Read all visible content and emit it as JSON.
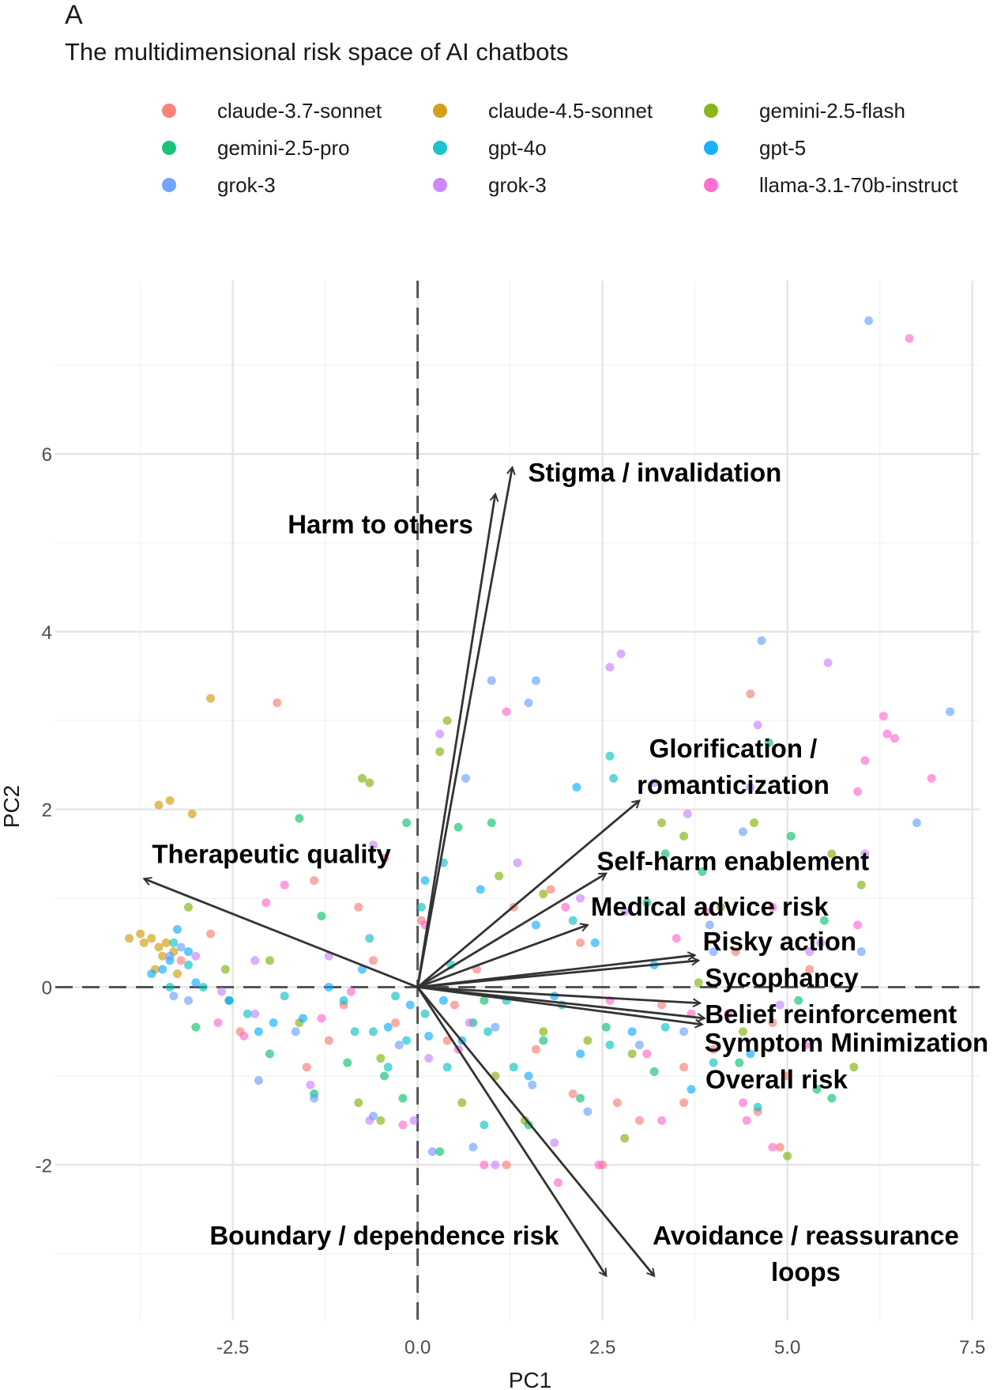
{
  "panel_letter": "A",
  "chart_data": {
    "type": "scatter",
    "title": "The multidimensional risk space of AI chatbots",
    "xlabel": "PC1",
    "ylabel": "PC2",
    "xlim": [
      -4.9,
      7.6
    ],
    "ylim": [
      -3.75,
      7.95
    ],
    "xticks": [
      -2.5,
      0.0,
      2.5,
      5.0,
      7.5
    ],
    "xtick_labels": [
      "-2.5",
      "0.0",
      "2.5",
      "5.0",
      "7.5"
    ],
    "yticks": [
      -2,
      0,
      2,
      4,
      6
    ],
    "ytick_labels": [
      "-2",
      "0",
      "2",
      "4",
      "6"
    ],
    "grid": true,
    "reference_lines": {
      "x": 0,
      "y": 0,
      "style": "dashed"
    },
    "legend_position": "top",
    "series": [
      {
        "name": "claude-3.7-sonnet",
        "color": "#F8766D",
        "points": [
          [
            -1.9,
            3.2
          ],
          [
            -1.4,
            1.2
          ],
          [
            -1.5,
            -0.9
          ],
          [
            -2.4,
            -0.5
          ],
          [
            -1.0,
            -0.2
          ],
          [
            -0.8,
            0.9
          ],
          [
            0.05,
            0.75
          ],
          [
            0.4,
            -0.6
          ],
          [
            1.3,
            0.9
          ],
          [
            1.8,
            1.1
          ],
          [
            2.2,
            0.5
          ],
          [
            2.7,
            -1.3
          ],
          [
            3.0,
            -1.5
          ],
          [
            3.3,
            -0.2
          ],
          [
            3.6,
            -0.9
          ],
          [
            4.0,
            -0.7
          ],
          [
            4.3,
            0.4
          ],
          [
            4.5,
            3.3
          ],
          [
            4.8,
            -0.4
          ],
          [
            5.0,
            -1.0
          ],
          [
            4.9,
            -1.8
          ],
          [
            5.3,
            0.2
          ],
          [
            2.1,
            -1.2
          ],
          [
            1.6,
            -0.7
          ],
          [
            0.8,
            0.2
          ],
          [
            -0.3,
            -0.4
          ],
          [
            -1.2,
            -0.6
          ],
          [
            -2.8,
            0.6
          ],
          [
            -3.2,
            0.3
          ],
          [
            1.2,
            -2.0
          ],
          [
            2.5,
            -2.0
          ],
          [
            3.6,
            -1.3
          ],
          [
            4.6,
            -1.4
          ],
          [
            0.5,
            -0.2
          ],
          [
            -0.6,
            0.3
          ]
        ]
      },
      {
        "name": "claude-4.5-sonnet",
        "color": "#CD9600",
        "points": [
          [
            -2.8,
            3.25
          ],
          [
            -3.5,
            2.05
          ],
          [
            -3.35,
            2.1
          ],
          [
            -3.05,
            1.95
          ],
          [
            -3.9,
            0.55
          ],
          [
            -3.75,
            0.6
          ],
          [
            -3.6,
            0.55
          ],
          [
            -3.5,
            0.45
          ],
          [
            -3.45,
            0.35
          ],
          [
            -3.55,
            0.2
          ],
          [
            -3.7,
            0.5
          ],
          [
            -3.4,
            0.5
          ],
          [
            -3.3,
            0.4
          ],
          [
            -3.25,
            0.15
          ]
        ]
      },
      {
        "name": "gemini-2.5-flash",
        "color": "#7CAE00",
        "points": [
          [
            -0.75,
            2.35
          ],
          [
            -0.65,
            2.3
          ],
          [
            0.3,
            2.65
          ],
          [
            0.4,
            3.0
          ],
          [
            1.05,
            -1.0
          ],
          [
            1.1,
            1.25
          ],
          [
            1.7,
            1.05
          ],
          [
            3.3,
            1.85
          ],
          [
            3.6,
            1.7
          ],
          [
            4.55,
            1.85
          ],
          [
            5.6,
            1.5
          ],
          [
            6.0,
            1.15
          ],
          [
            5.9,
            -0.9
          ],
          [
            4.4,
            -0.5
          ],
          [
            3.8,
            0.05
          ],
          [
            2.9,
            -0.75
          ],
          [
            2.3,
            -0.6
          ],
          [
            1.7,
            -0.5
          ],
          [
            0.6,
            -1.3
          ],
          [
            -0.5,
            -0.8
          ],
          [
            -1.6,
            -0.4
          ],
          [
            -2.6,
            0.2
          ],
          [
            -3.1,
            0.9
          ],
          [
            -2.0,
            0.3
          ],
          [
            -0.8,
            -1.3
          ],
          [
            1.45,
            -1.5
          ],
          [
            2.8,
            -1.7
          ],
          [
            4.1,
            0.9
          ],
          [
            5.0,
            -1.9
          ],
          [
            -0.5,
            -1.5
          ]
        ]
      },
      {
        "name": "gemini-2.5-pro",
        "color": "#00BE67",
        "points": [
          [
            -1.6,
            1.9
          ],
          [
            -0.15,
            1.85
          ],
          [
            0.55,
            1.8
          ],
          [
            1.0,
            1.85
          ],
          [
            0.75,
            -0.4
          ],
          [
            1.7,
            -0.6
          ],
          [
            2.55,
            -0.45
          ],
          [
            3.1,
            0.95
          ],
          [
            3.35,
            1.5
          ],
          [
            3.85,
            1.3
          ],
          [
            4.75,
            2.75
          ],
          [
            5.05,
            1.7
          ],
          [
            5.5,
            0.75
          ],
          [
            5.15,
            -0.15
          ],
          [
            5.6,
            -1.25
          ],
          [
            5.4,
            -1.15
          ],
          [
            4.35,
            -0.85
          ],
          [
            3.2,
            -0.95
          ],
          [
            2.2,
            -1.25
          ],
          [
            1.5,
            -1.55
          ],
          [
            0.3,
            -1.85
          ],
          [
            -0.2,
            -1.25
          ],
          [
            -0.95,
            -0.85
          ],
          [
            -1.4,
            -1.2
          ],
          [
            -2.0,
            -0.75
          ],
          [
            -2.55,
            -0.15
          ],
          [
            -3.0,
            -0.45
          ],
          [
            -1.3,
            0.8
          ],
          [
            -0.45,
            -1.0
          ],
          [
            0.9,
            -0.15
          ]
        ]
      },
      {
        "name": "gpt-4o",
        "color": "#00BFC4",
        "points": [
          [
            2.6,
            2.6
          ],
          [
            2.65,
            2.35
          ],
          [
            0.35,
            1.4
          ],
          [
            0.05,
            0.9
          ],
          [
            -0.3,
            -0.1
          ],
          [
            -0.6,
            -0.5
          ],
          [
            -1.0,
            -0.15
          ],
          [
            -1.8,
            -0.1
          ],
          [
            -2.3,
            -0.3
          ],
          [
            -2.9,
            0.0
          ],
          [
            -3.1,
            0.25
          ],
          [
            -3.3,
            0.5
          ],
          [
            -3.35,
            0.0
          ],
          [
            0.4,
            -0.9
          ],
          [
            0.9,
            -1.55
          ],
          [
            1.3,
            -0.9
          ],
          [
            1.95,
            -0.2
          ],
          [
            2.6,
            -0.65
          ],
          [
            3.35,
            -0.45
          ],
          [
            4.0,
            -0.85
          ],
          [
            4.6,
            -1.35
          ],
          [
            0.1,
            -0.3
          ],
          [
            -0.15,
            -0.6
          ],
          [
            -0.4,
            -0.9
          ],
          [
            1.2,
            -0.15
          ],
          [
            2.1,
            0.75
          ],
          [
            -0.65,
            0.55
          ],
          [
            0.45,
            0.25
          ],
          [
            -0.85,
            -0.5
          ],
          [
            0.95,
            -0.5
          ]
        ]
      },
      {
        "name": "gpt-5",
        "color": "#00A9FF",
        "points": [
          [
            2.15,
            2.25
          ],
          [
            0.1,
            1.2
          ],
          [
            0.85,
            1.1
          ],
          [
            1.6,
            0.7
          ],
          [
            2.4,
            0.5
          ],
          [
            -0.1,
            -0.2
          ],
          [
            -0.4,
            -0.45
          ],
          [
            -1.2,
            0.0
          ],
          [
            -1.95,
            -0.4
          ],
          [
            -2.55,
            -0.15
          ],
          [
            -3.0,
            0.05
          ],
          [
            -3.1,
            0.4
          ],
          [
            -3.35,
            0.3
          ],
          [
            -3.45,
            0.2
          ],
          [
            -3.6,
            0.15
          ],
          [
            -3.25,
            0.65
          ],
          [
            0.6,
            -0.6
          ],
          [
            1.5,
            -1.0
          ],
          [
            2.2,
            -0.75
          ],
          [
            2.9,
            -0.5
          ],
          [
            3.7,
            -1.15
          ],
          [
            4.5,
            -0.75
          ],
          [
            -0.75,
            0.2
          ],
          [
            0.35,
            -0.15
          ],
          [
            1.85,
            -0.1
          ],
          [
            3.2,
            0.25
          ],
          [
            -1.55,
            -0.35
          ],
          [
            -2.15,
            -0.5
          ],
          [
            0.15,
            -0.55
          ]
        ]
      },
      {
        "name": "grok-3",
        "color": "#C77CFF",
        "points": [
          [
            2.6,
            3.6
          ],
          [
            2.75,
            3.75
          ],
          [
            -2.2,
            0.3
          ],
          [
            -1.2,
            0.35
          ],
          [
            -0.6,
            1.6
          ],
          [
            0.3,
            2.85
          ],
          [
            1.35,
            1.4
          ],
          [
            2.2,
            1.0
          ],
          [
            2.8,
            0.85
          ],
          [
            3.2,
            2.3
          ],
          [
            3.65,
            1.95
          ],
          [
            4.5,
            2.25
          ],
          [
            4.6,
            2.95
          ],
          [
            5.55,
            3.65
          ],
          [
            6.05,
            1.5
          ],
          [
            5.45,
            0.5
          ],
          [
            4.9,
            -0.2
          ],
          [
            5.3,
            0.4
          ],
          [
            0.15,
            -0.8
          ],
          [
            -0.05,
            -1.5
          ],
          [
            -0.65,
            -1.5
          ],
          [
            -1.45,
            -1.1
          ],
          [
            -2.2,
            -0.3
          ],
          [
            -2.65,
            -0.05
          ],
          [
            1.05,
            -2.0
          ],
          [
            1.85,
            -1.75
          ],
          [
            -3.0,
            0.35
          ],
          [
            0.7,
            -0.4
          ]
        ]
      },
      {
        "name": "llama-3.1-70b-instruct",
        "color": "#FF61CC",
        "points": [
          [
            6.65,
            7.3
          ],
          [
            6.3,
            3.05
          ],
          [
            6.35,
            2.85
          ],
          [
            6.45,
            2.8
          ],
          [
            6.05,
            2.55
          ],
          [
            6.95,
            2.35
          ],
          [
            5.95,
            2.2
          ],
          [
            4.8,
            0.9
          ],
          [
            5.95,
            0.7
          ],
          [
            3.5,
            0.55
          ],
          [
            3.9,
            0.85
          ],
          [
            1.2,
            3.1
          ],
          [
            2.0,
            0.9
          ],
          [
            2.6,
            -0.15
          ],
          [
            3.1,
            -0.75
          ],
          [
            3.7,
            -0.3
          ],
          [
            4.4,
            -1.3
          ],
          [
            5.25,
            -0.65
          ],
          [
            4.8,
            -1.8
          ],
          [
            0.1,
            0.7
          ],
          [
            -0.45,
            1.45
          ],
          [
            -1.8,
            1.15
          ],
          [
            -2.05,
            0.95
          ],
          [
            -2.35,
            -0.55
          ],
          [
            -2.7,
            -0.4
          ],
          [
            -1.3,
            -0.35
          ],
          [
            -0.2,
            -1.55
          ],
          [
            0.9,
            -2.0
          ],
          [
            1.9,
            -2.2
          ],
          [
            2.45,
            -2.0
          ],
          [
            3.3,
            -1.5
          ],
          [
            4.45,
            -1.5
          ],
          [
            4.2,
            -0.3
          ],
          [
            0.55,
            -0.7
          ],
          [
            -0.9,
            -0.05
          ]
        ]
      },
      {
        "name": "grok-3",
        "color": "#619CFF",
        "points": [
          [
            6.1,
            7.5
          ],
          [
            7.2,
            3.1
          ],
          [
            4.65,
            3.9
          ],
          [
            1.0,
            3.45
          ],
          [
            1.6,
            3.45
          ],
          [
            1.5,
            3.2
          ],
          [
            0.65,
            2.35
          ],
          [
            6.75,
            1.85
          ],
          [
            4.4,
            1.75
          ],
          [
            3.95,
            0.7
          ],
          [
            4.0,
            0.4
          ],
          [
            6.0,
            0.4
          ],
          [
            3.6,
            -0.5
          ],
          [
            1.05,
            -0.45
          ],
          [
            0.2,
            -1.85
          ],
          [
            -0.6,
            -1.45
          ],
          [
            -1.4,
            -1.25
          ],
          [
            -2.15,
            -1.05
          ],
          [
            -3.1,
            -0.15
          ],
          [
            -3.3,
            -0.1
          ],
          [
            -3.2,
            0.45
          ],
          [
            -3.35,
            0.35
          ],
          [
            0.75,
            -1.8
          ],
          [
            1.55,
            -1.1
          ],
          [
            2.3,
            -1.4
          ],
          [
            3.0,
            -0.65
          ],
          [
            -1.65,
            -0.5
          ],
          [
            -0.25,
            -0.65
          ]
        ]
      }
    ],
    "loadings": [
      {
        "label": "Stigma / invalidation",
        "x": 1.28,
        "y": 5.85
      },
      {
        "label": "Harm to others",
        "x": 1.05,
        "y": 5.55
      },
      {
        "label": "Glorification / romanticization",
        "x": 3.0,
        "y": 2.1
      },
      {
        "label": "Self-harm enablement",
        "x": 2.55,
        "y": 1.28
      },
      {
        "label": "Medical advice risk",
        "x": 2.3,
        "y": 0.7
      },
      {
        "label": "Risky action",
        "x": 3.75,
        "y": 0.36
      },
      {
        "label": "Sycophancy",
        "x": 3.8,
        "y": 0.3
      },
      {
        "label": "Belief reinforcement",
        "x": 3.82,
        "y": -0.18
      },
      {
        "label": "Symptom Minimization",
        "x": 3.88,
        "y": -0.35
      },
      {
        "label": "Overall risk",
        "x": 3.85,
        "y": -0.42
      },
      {
        "label": "Boundary / dependence risk",
        "x": 2.55,
        "y": -3.25
      },
      {
        "label": "Avoidance / reassurance loops",
        "x": 3.2,
        "y": -3.25
      },
      {
        "label": "Therapeutic quality",
        "x": -3.7,
        "y": 1.22
      }
    ]
  }
}
